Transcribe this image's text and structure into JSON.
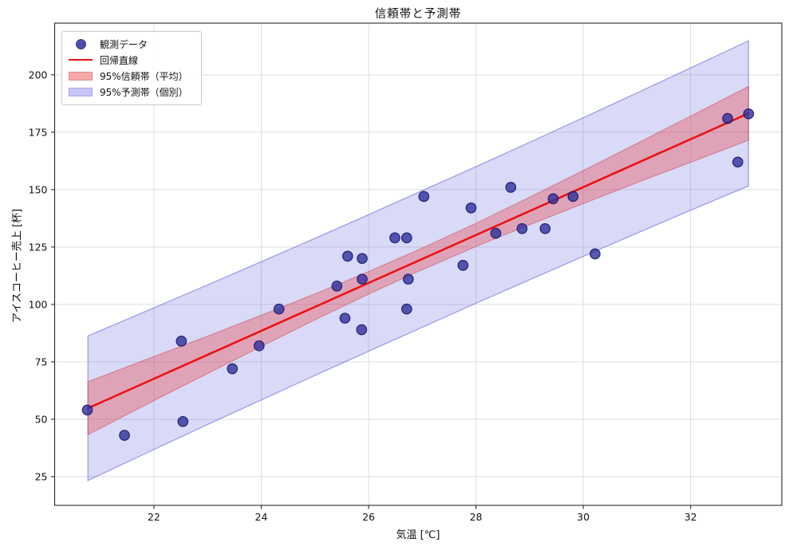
{
  "title": "信頼帯と予測帯",
  "axes": {
    "xlabel": "気温 [℃]",
    "ylabel": "アイスコーヒー売上 [杯]"
  },
  "legend": {
    "position": "upper left",
    "items": [
      {
        "type": "marker",
        "label": "観測データ"
      },
      {
        "type": "line",
        "label": "回帰直線"
      },
      {
        "type": "patch-red",
        "label": "95%信頼帯（平均）"
      },
      {
        "type": "patch-blue",
        "label": "95%予測帯（個別）"
      }
    ]
  },
  "colors": {
    "marker_fill": "#30309c",
    "marker_edge": "#1c1c6e",
    "regression_line": "#ec1111",
    "ci_fill": "rgba(235,50,50,0.32)",
    "ci_edge": "rgba(200,70,70,0.55)",
    "pr_fill": "rgba(95,95,225,0.24)",
    "pr_edge": "rgba(100,100,215,0.6)",
    "grid": "#dedede",
    "spine": "#2a2a2a",
    "tick_text": "#111111",
    "legend_swatch_red": "#f5a9a9",
    "legend_swatch_red_edge": "#e08f8f",
    "legend_swatch_blue": "#c7c7f3",
    "legend_swatch_blue_edge": "#a8a8e5"
  },
  "chart_data": {
    "type": "scatter",
    "title": "信頼帯と予測帯",
    "xlabel": "気温 [℃]",
    "ylabel": "アイスコーヒー売上 [杯]",
    "xlim": [
      20.15,
      33.7
    ],
    "ylim": [
      12.5,
      222.5
    ],
    "xticks": [
      22,
      24,
      26,
      28,
      30,
      32
    ],
    "yticks": [
      25,
      50,
      75,
      100,
      125,
      150,
      175,
      200
    ],
    "grid": true,
    "legend_position": "upper left",
    "series": [
      {
        "name": "観測データ",
        "type": "scatter",
        "points": [
          [
            20.76,
            54
          ],
          [
            21.45,
            43
          ],
          [
            22.51,
            84
          ],
          [
            22.54,
            49
          ],
          [
            23.46,
            72
          ],
          [
            23.96,
            82
          ],
          [
            24.33,
            98
          ],
          [
            25.41,
            108
          ],
          [
            25.56,
            94
          ],
          [
            25.61,
            121
          ],
          [
            25.88,
            120
          ],
          [
            25.88,
            111
          ],
          [
            25.87,
            89
          ],
          [
            26.49,
            129
          ],
          [
            26.71,
            129
          ],
          [
            26.74,
            111
          ],
          [
            26.71,
            98
          ],
          [
            27.03,
            147
          ],
          [
            27.76,
            117
          ],
          [
            27.91,
            142
          ],
          [
            28.37,
            131
          ],
          [
            28.65,
            151
          ],
          [
            28.86,
            133
          ],
          [
            29.29,
            133
          ],
          [
            29.44,
            146
          ],
          [
            29.81,
            147
          ],
          [
            30.22,
            122
          ],
          [
            32.69,
            181
          ],
          [
            32.88,
            162
          ],
          [
            33.08,
            183
          ]
        ]
      },
      {
        "name": "回帰直線",
        "type": "line",
        "x": [
          20.77,
          33.08
        ],
        "y": [
          54.8,
          183.2
        ]
      },
      {
        "name": "95%信頼帯（平均）",
        "type": "band",
        "x": [
          20.77,
          22,
          23,
          24,
          25,
          26,
          26.86,
          28,
          29,
          30,
          31,
          32,
          33.08
        ],
        "lower": [
          43.3,
          58.1,
          69.9,
          81.7,
          93.3,
          104.5,
          113.7,
          125.2,
          134.7,
          143.9,
          153.0,
          161.9,
          171.5
        ],
        "upper": [
          66.3,
          77.3,
          86.2,
          95.3,
          104.6,
          114.3,
          123.1,
          135.3,
          146.7,
          158.3,
          170.1,
          182.0,
          194.9
        ]
      },
      {
        "name": "95%予測帯（個別）",
        "type": "band",
        "x": [
          20.77,
          22,
          23,
          24,
          25,
          26,
          26.86,
          28,
          29,
          30,
          31,
          32,
          33.08
        ],
        "lower": [
          23.3,
          36.8,
          47.7,
          58.4,
          69.1,
          79.6,
          88.6,
          100.5,
          110.7,
          120.9,
          131.0,
          141.0,
          151.6
        ],
        "upper": [
          86.3,
          98.5,
          108.5,
          118.6,
          128.8,
          139.1,
          148.1,
          160.0,
          170.6,
          181.3,
          192.1,
          203.0,
          214.8
        ]
      }
    ]
  }
}
